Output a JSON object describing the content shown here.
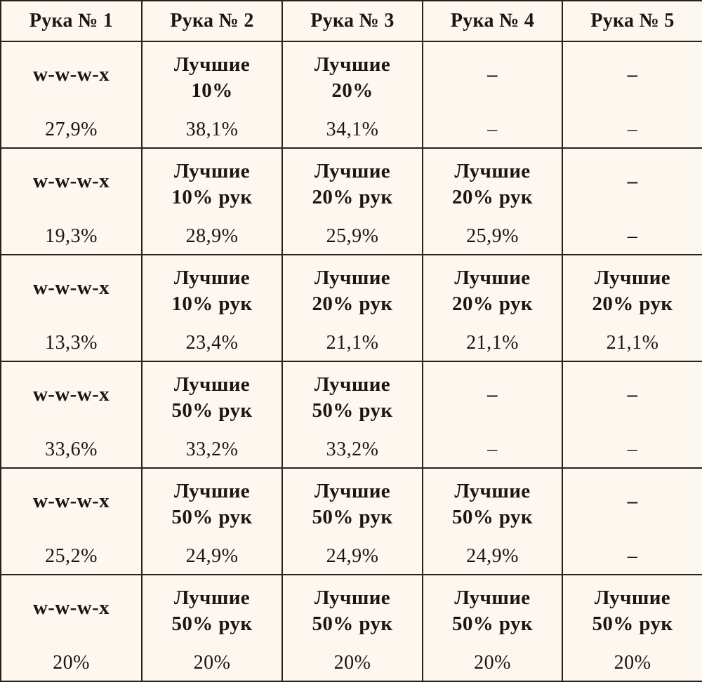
{
  "columns": [
    "Рука № 1",
    "Рука № 2",
    "Рука № 3",
    "Рука № 4",
    "Рука № 5"
  ],
  "rows": [
    {
      "labels": [
        "w-w-w-x",
        "Лучшие\n10%",
        "Лучшие\n20%",
        "–",
        "–"
      ],
      "values": [
        "27,9%",
        "38,1%",
        "34,1%",
        "–",
        "–"
      ]
    },
    {
      "labels": [
        "w-w-w-x",
        "Лучшие\n10% рук",
        "Лучшие\n20% рук",
        "Лучшие\n20% рук",
        "–"
      ],
      "values": [
        "19,3%",
        "28,9%",
        "25,9%",
        "25,9%",
        "–"
      ]
    },
    {
      "labels": [
        "w-w-w-x",
        "Лучшие\n10% рук",
        "Лучшие\n20% рук",
        "Лучшие\n20% рук",
        "Лучшие\n20% рук"
      ],
      "values": [
        "13,3%",
        "23,4%",
        "21,1%",
        "21,1%",
        "21,1%"
      ]
    },
    {
      "labels": [
        "w-w-w-x",
        "Лучшие\n50% рук",
        "Лучшие\n50% рук",
        "–",
        "–"
      ],
      "values": [
        "33,6%",
        "33,2%",
        "33,2%",
        "–",
        "–"
      ]
    },
    {
      "labels": [
        "w-w-w-x",
        "Лучшие\n50% рук",
        "Лучшие\n50% рук",
        "Лучшие\n50% рук",
        "–"
      ],
      "values": [
        "25,2%",
        "24,9%",
        "24,9%",
        "24,9%",
        "–"
      ]
    },
    {
      "labels": [
        "w-w-w-x",
        "Лучшие\n50% рук",
        "Лучшие\n50% рук",
        "Лучшие\n50% рук",
        "Лучшие\n50% рук"
      ],
      "values": [
        "20%",
        "20%",
        "20%",
        "20%",
        "20%"
      ]
    }
  ]
}
